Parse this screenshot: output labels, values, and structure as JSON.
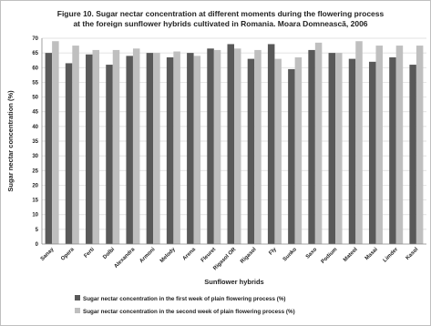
{
  "chart_data": {
    "type": "bar",
    "title_lines": [
      "Figure 10. Sugar nectar concentration at different moments during the flowering process",
      "at the foreign sunflower hybrids cultivated in Romania.  Moara Domnească, 2006"
    ],
    "xlabel": "Sunflower hybrids",
    "ylabel": "Sugar nectar concentration (%)",
    "ylim": [
      0,
      70
    ],
    "ytick_step": 5,
    "grid": true,
    "legend_position": "bottom",
    "categories": [
      "Sanay",
      "Opera",
      "Ferti",
      "Dolbi",
      "Alexandra",
      "Armoni",
      "Melody",
      "Arena",
      "Fleuret",
      "Rigasol OR",
      "Rigasol",
      "Fly",
      "Sunko",
      "Saxo",
      "Podium",
      "Mateol",
      "Masai",
      "Limder",
      "Kasol"
    ],
    "series": [
      {
        "name": "Sugar nectar concentration in the first week of plain flowering process (%)",
        "color": "#595959",
        "values": [
          65,
          61.5,
          64.5,
          61,
          64,
          65,
          63.5,
          65,
          66.5,
          68,
          63,
          68,
          59.5,
          66,
          65,
          63,
          62,
          63.5,
          61
        ]
      },
      {
        "name": "Sugar nectar concentration in the second week of plain flowering process (%)",
        "color": "#bfbfbf",
        "values": [
          69,
          67.5,
          66,
          66,
          66.5,
          65,
          65.5,
          64,
          66,
          66.5,
          66,
          63,
          63.5,
          68.5,
          65,
          69,
          67.5,
          67.5,
          67.5
        ]
      }
    ]
  }
}
